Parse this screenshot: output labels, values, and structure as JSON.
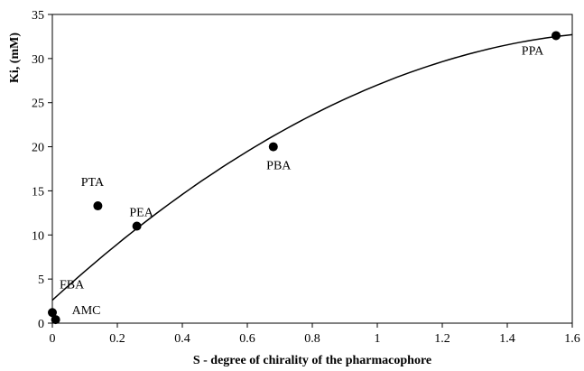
{
  "chart_data": {
    "type": "scatter",
    "title": "",
    "xlabel": "S - degree of chirality of the pharmacophore",
    "ylabel": "Ki, (mM)",
    "xlim": [
      0,
      1.6
    ],
    "ylim": [
      0,
      35
    ],
    "x_ticks": [
      "0",
      "0.2",
      "0.4",
      "0.6",
      "0.8",
      "1",
      "1.2",
      "1.4",
      "1.6"
    ],
    "y_ticks": [
      "0",
      "5",
      "10",
      "15",
      "20",
      "25",
      "30",
      "35"
    ],
    "grid": false,
    "points": [
      {
        "label": "FBA",
        "x": 0.0,
        "y": 1.2
      },
      {
        "label": "AMC",
        "x": 0.01,
        "y": 0.4
      },
      {
        "label": "PTA",
        "x": 0.14,
        "y": 13.3
      },
      {
        "label": "PEA",
        "x": 0.26,
        "y": 11.0
      },
      {
        "label": "PBA",
        "x": 0.68,
        "y": 20.0
      },
      {
        "label": "PPA",
        "x": 1.55,
        "y": 32.6
      }
    ],
    "trendline": {
      "type": "polynomial-2",
      "coefficients": [
        2.6,
        33.7,
        -9.3
      ]
    },
    "colors": {
      "marker": "#000000",
      "line": "#000000",
      "axes": "#000000"
    }
  }
}
